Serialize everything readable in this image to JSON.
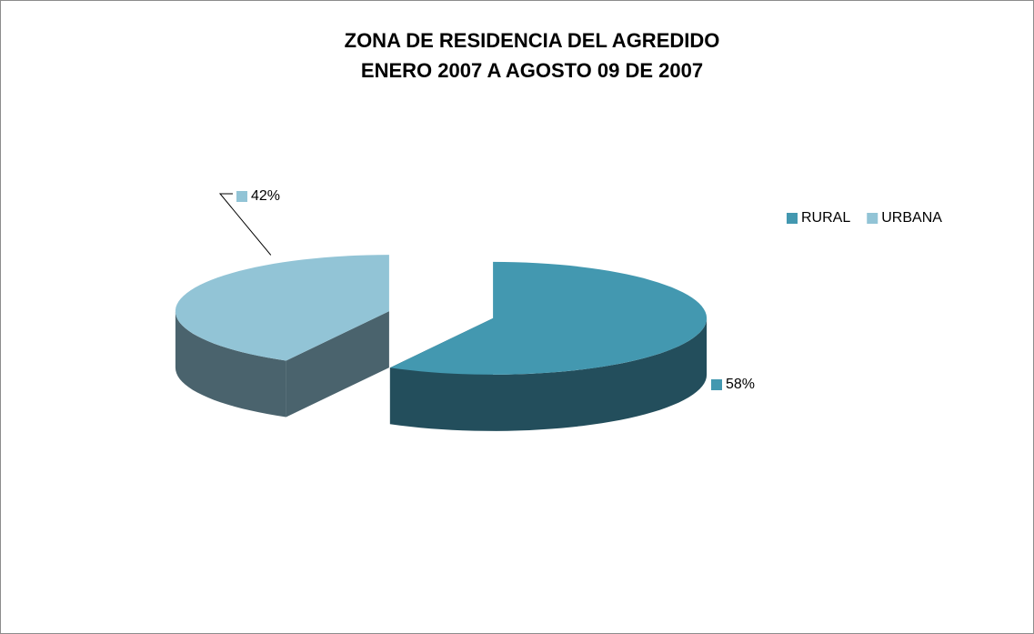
{
  "chart_data": {
    "type": "pie3d",
    "title": "ZONA DE RESIDENCIA DEL AGREDIDO",
    "subtitle": "ENERO 2007 A AGOSTO 09 DE 2007",
    "categories": [
      "RURAL",
      "URBANA"
    ],
    "values": [
      58,
      42
    ],
    "value_labels": [
      "58%",
      "42%"
    ],
    "colors": [
      "#4398b0",
      "#92c4d6"
    ],
    "side_colors": [
      "#234e5c",
      "#4a636d"
    ],
    "legend": "right"
  }
}
